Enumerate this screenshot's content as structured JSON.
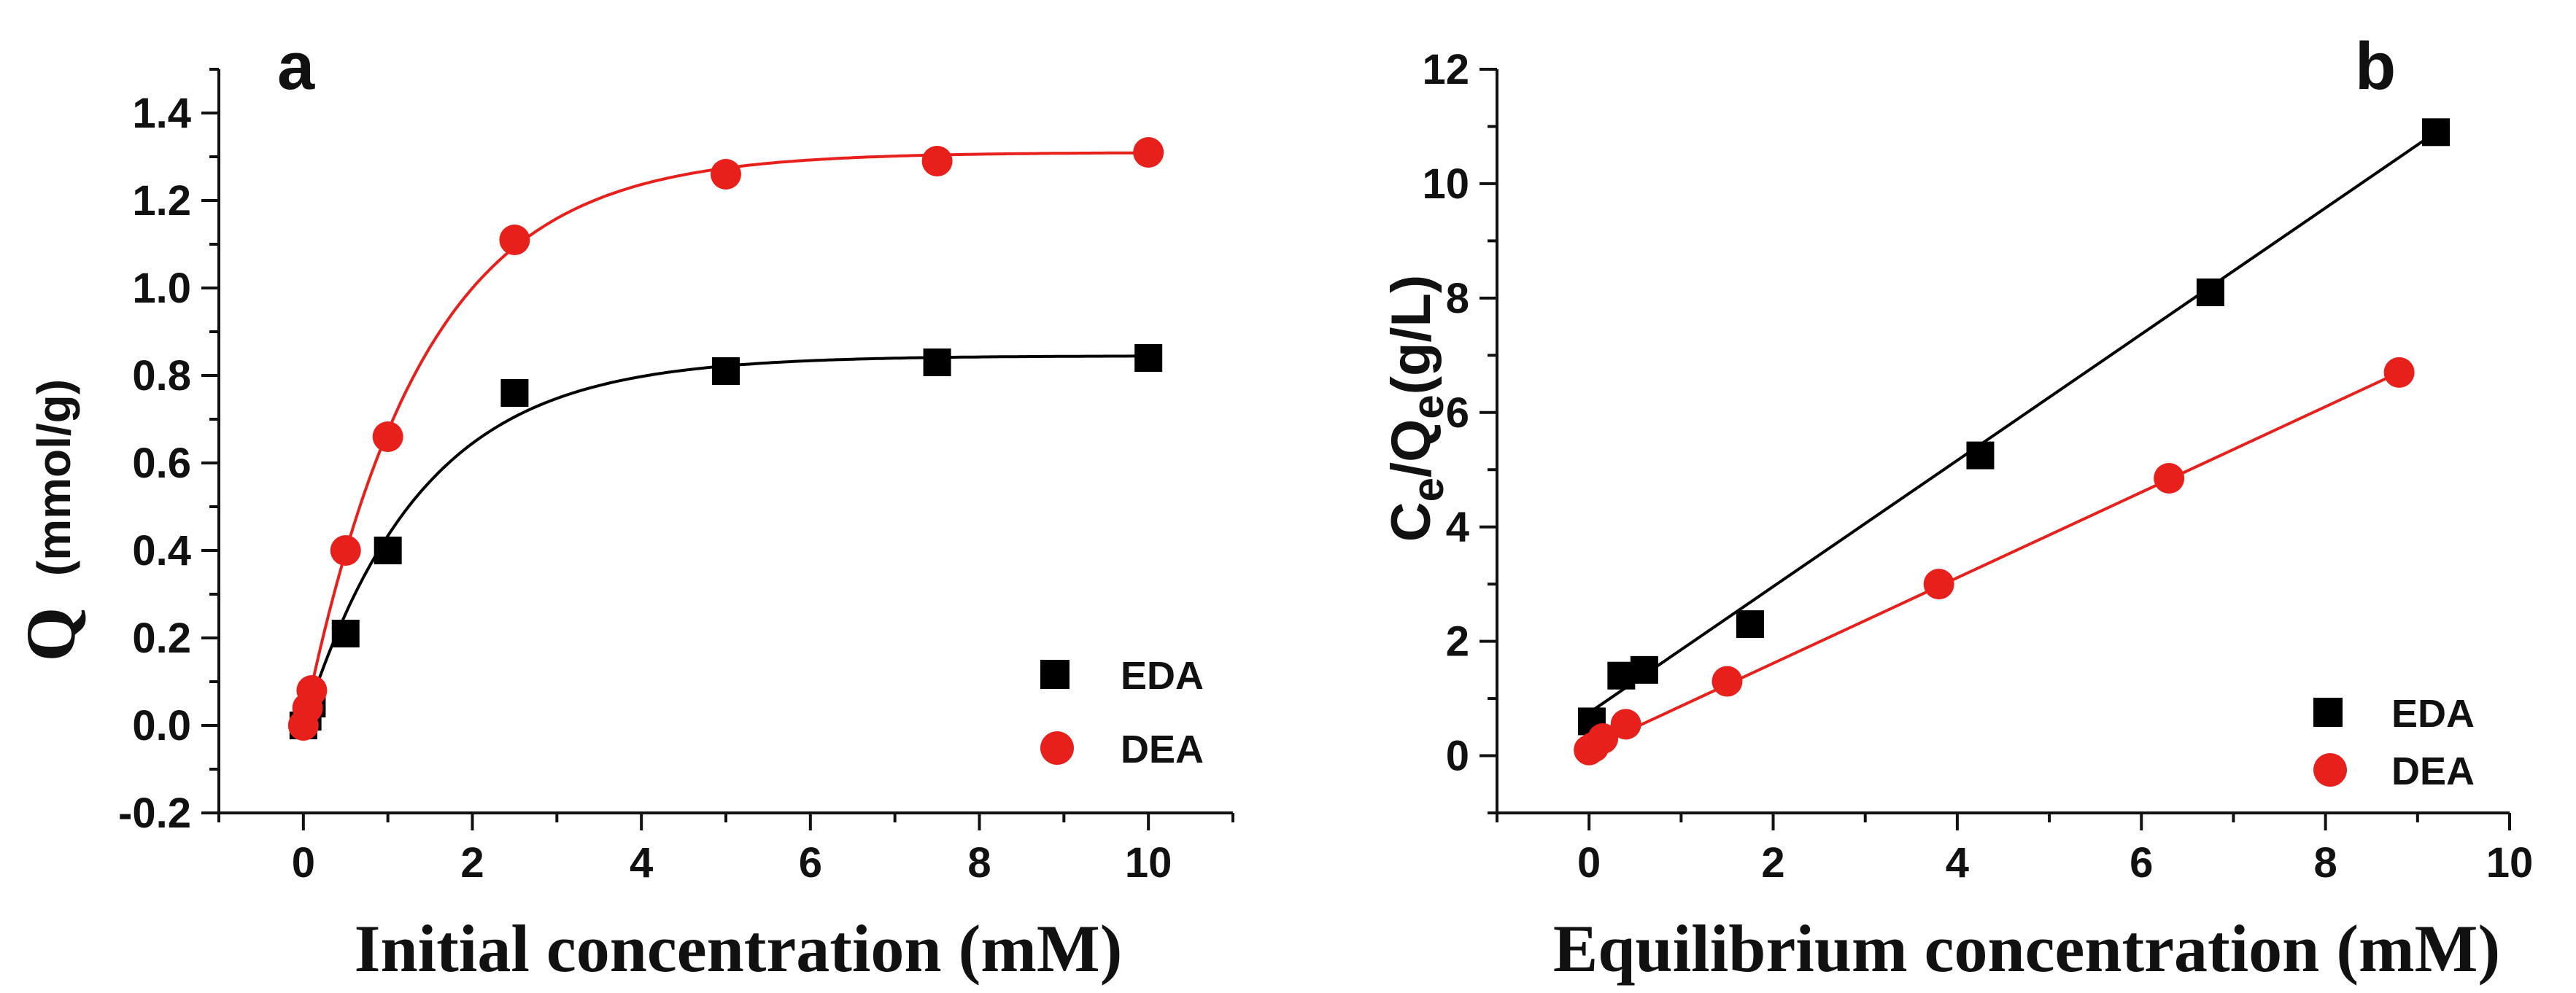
{
  "chart_data": [
    {
      "type": "scatter",
      "panel": "a",
      "title": "",
      "xlabel": "Initial concentration (mM)",
      "ylabel": "Q",
      "ylabel_unit": "(mmol/g)",
      "xlim": [
        -1,
        11
      ],
      "ylim": [
        -0.2,
        1.5
      ],
      "xticks": [
        0,
        2,
        4,
        6,
        8,
        10
      ],
      "yticks": [
        -0.2,
        0.0,
        0.2,
        0.4,
        0.6,
        0.8,
        1.0,
        1.2,
        1.4
      ],
      "ytick_labels": [
        "-0.2",
        "0.0",
        "0.2",
        "0.4",
        "0.6",
        "0.8",
        "1.0",
        "1.2",
        "1.4"
      ],
      "legend_position": "bottom-right",
      "series": [
        {
          "name": "EDA",
          "color": "#000000",
          "marker": "square",
          "x": [
            0.0,
            0.05,
            0.1,
            0.5,
            1.0,
            2.5,
            5.0,
            7.5,
            10.0
          ],
          "y": [
            0.0,
            0.02,
            0.05,
            0.21,
            0.4,
            0.76,
            0.81,
            0.83,
            0.84
          ],
          "fit": {
            "model": "exponential",
            "qmax": 0.845,
            "k": 0.72
          }
        },
        {
          "name": "DEA",
          "color": "#e8201c",
          "marker": "circle",
          "x": [
            0.0,
            0.05,
            0.1,
            0.5,
            1.0,
            2.5,
            5.0,
            7.5,
            10.0
          ],
          "y": [
            0.0,
            0.04,
            0.08,
            0.4,
            0.66,
            1.11,
            1.26,
            1.29,
            1.31
          ],
          "fit": {
            "model": "exponential",
            "qmax": 1.31,
            "k": 0.72
          }
        }
      ]
    },
    {
      "type": "scatter",
      "panel": "b",
      "title": "",
      "xlabel": "Equilibrium concentration (mM)",
      "ylabel": "Ce/Qe(g/L)",
      "ylabel_parts": {
        "c": "C",
        "e1": "e",
        "slash": "/Q",
        "e2": "e",
        "unit": "(g/L)"
      },
      "xlim": [
        -1,
        10
      ],
      "ylim": [
        -1,
        12
      ],
      "xticks": [
        0,
        2,
        4,
        6,
        8,
        10
      ],
      "yticks": [
        0,
        2,
        4,
        6,
        8,
        10,
        12
      ],
      "ytick_labels": [
        "0",
        "2",
        "4",
        "6",
        "8",
        "10",
        "12"
      ],
      "legend_position": "bottom-right",
      "series": [
        {
          "name": "EDA",
          "color": "#000000",
          "marker": "square",
          "x": [
            0.03,
            0.35,
            0.6,
            1.75,
            4.25,
            6.75,
            9.2
          ],
          "y": [
            0.6,
            1.4,
            1.5,
            2.3,
            5.25,
            8.1,
            10.9
          ],
          "fit": {
            "model": "linear",
            "x0": 0.0,
            "x1": 9.2,
            "y0": 0.75,
            "y1": 10.9
          }
        },
        {
          "name": "DEA",
          "color": "#e8201c",
          "marker": "circle",
          "x": [
            0.0,
            0.05,
            0.15,
            0.4,
            1.5,
            3.8,
            6.3,
            8.8
          ],
          "y": [
            0.1,
            0.15,
            0.3,
            0.55,
            1.3,
            3.0,
            4.85,
            6.7
          ],
          "fit": {
            "model": "linear",
            "x0": 0.0,
            "x1": 8.8,
            "y0": 0.12,
            "y1": 6.7
          }
        }
      ]
    }
  ]
}
